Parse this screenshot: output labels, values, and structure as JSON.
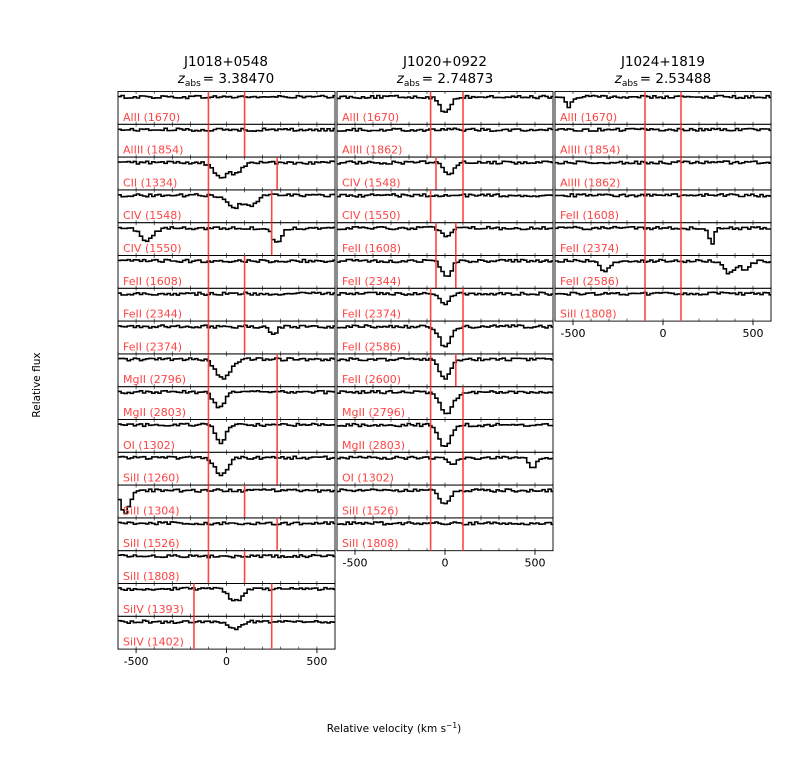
{
  "chart_data": {
    "type": "line",
    "ylabel": "Relative flux",
    "xlabel": "Relative velocity (km s",
    "xlabel_superscript": "−1",
    "xlabel_tail": ")",
    "xlim": [
      -600,
      600
    ],
    "ylim": [
      0,
      1.2
    ],
    "xticks": [
      -500,
      0,
      500
    ],
    "xtick_labels": [
      "-500",
      "0",
      "500"
    ],
    "grid": false,
    "line_color": "#000000",
    "label_color": "#ff4444",
    "marker_color": "#ff4444",
    "panels": [
      {
        "name": "J1018+0548",
        "z_prefix": "z",
        "z_subscript": "abs",
        "z_value": "= 3.38470",
        "vlines": [
          -100,
          100
        ],
        "subplots": [
          {
            "label": "AlII (1670)",
            "vlines": [
              -100,
              100
            ],
            "absorptions": []
          },
          {
            "label": "AlIII (1854)",
            "vlines": [
              -100,
              100
            ],
            "absorptions": []
          },
          {
            "label": "CII (1334)",
            "vlines": [
              -100,
              280
            ],
            "absorptions": [
              {
                "v": -30,
                "depth": 0.6,
                "width": 40
              },
              {
                "v": 60,
                "depth": 0.4,
                "width": 30
              }
            ]
          },
          {
            "label": "CIV (1548)",
            "vlines": [
              -100,
              250
            ],
            "absorptions": [
              {
                "v": 40,
                "depth": 0.5,
                "width": 40
              },
              {
                "v": 140,
                "depth": 0.4,
                "width": 30
              }
            ]
          },
          {
            "label": "CIV (1550)",
            "vlines": [
              -100,
              250
            ],
            "absorptions": [
              {
                "v": -440,
                "depth": 0.5,
                "width": 35
              },
              {
                "v": 280,
                "depth": 0.6,
                "width": 25
              }
            ]
          },
          {
            "label": "FeII (1608)",
            "vlines": [
              -100,
              100
            ],
            "absorptions": []
          },
          {
            "label": "FeII (2344)",
            "vlines": [
              -100,
              100
            ],
            "absorptions": []
          },
          {
            "label": "FeII (2374)",
            "vlines": [
              -100,
              100
            ],
            "absorptions": [
              {
                "v": 260,
                "depth": 0.3,
                "width": 20
              }
            ]
          },
          {
            "label": "MgII (2796)",
            "vlines": [
              -100,
              280
            ],
            "absorptions": [
              {
                "v": -20,
                "depth": 0.8,
                "width": 40
              }
            ]
          },
          {
            "label": "MgII (2803)",
            "vlines": [
              -100,
              280
            ],
            "absorptions": [
              {
                "v": -40,
                "depth": 0.6,
                "width": 30
              }
            ]
          },
          {
            "label": "OI (1302)",
            "vlines": [
              -100,
              280
            ],
            "absorptions": [
              {
                "v": -30,
                "depth": 0.8,
                "width": 25
              }
            ]
          },
          {
            "label": "SiII (1260)",
            "vlines": [
              -100,
              280
            ],
            "absorptions": [
              {
                "v": -30,
                "depth": 0.7,
                "width": 35
              }
            ]
          },
          {
            "label": "SiII (1304)",
            "vlines": [
              -100,
              100
            ],
            "absorptions": [
              {
                "v": -560,
                "depth": 0.9,
                "width": 25
              }
            ]
          },
          {
            "label": "SiII (1526)",
            "vlines": [
              -100,
              280
            ],
            "absorptions": []
          },
          {
            "label": "SiII (1808)",
            "vlines": [
              -100,
              100
            ],
            "absorptions": []
          },
          {
            "label": "SiIV (1393)",
            "vlines": [
              -180,
              250
            ],
            "absorptions": [
              {
                "v": 50,
                "depth": 0.5,
                "width": 35
              }
            ]
          },
          {
            "label": "SiIV (1402)",
            "vlines": [
              -180,
              250
            ],
            "absorptions": [
              {
                "v": 40,
                "depth": 0.3,
                "width": 35
              }
            ]
          }
        ]
      },
      {
        "name": "J1020+0922",
        "z_prefix": "z",
        "z_subscript": "abs",
        "z_value": "= 2.74873",
        "vlines": [
          -80,
          100
        ],
        "subplots": [
          {
            "label": "AlII (1670)",
            "vlines": [
              -80,
              100
            ],
            "absorptions": [
              {
                "v": 0,
                "depth": 0.6,
                "width": 30
              }
            ]
          },
          {
            "label": "AlIII (1862)",
            "vlines": [
              -80,
              100
            ],
            "absorptions": []
          },
          {
            "label": "CIV (1548)",
            "vlines": [
              -50,
              100
            ],
            "absorptions": [
              {
                "v": 20,
                "depth": 0.5,
                "width": 25
              }
            ]
          },
          {
            "label": "CIV (1550)",
            "vlines": [
              -80,
              100
            ],
            "absorptions": []
          },
          {
            "label": "FeII (1608)",
            "vlines": [
              -50,
              60
            ],
            "absorptions": [
              {
                "v": 10,
                "depth": 0.4,
                "width": 25
              }
            ]
          },
          {
            "label": "FeII (2344)",
            "vlines": [
              -50,
              60
            ],
            "absorptions": [
              {
                "v": 10,
                "depth": 0.7,
                "width": 25
              }
            ]
          },
          {
            "label": "FeII (2374)",
            "vlines": [
              -80,
              100
            ],
            "absorptions": [
              {
                "v": 0,
                "depth": 0.4,
                "width": 25
              }
            ]
          },
          {
            "label": "FeII (2586)",
            "vlines": [
              -80,
              100
            ],
            "absorptions": [
              {
                "v": 0,
                "depth": 0.8,
                "width": 30
              }
            ]
          },
          {
            "label": "FeII (2600)",
            "vlines": [
              -80,
              60
            ],
            "absorptions": [
              {
                "v": 0,
                "depth": 0.8,
                "width": 30
              }
            ]
          },
          {
            "label": "MgII (2796)",
            "vlines": [
              -80,
              100
            ],
            "absorptions": [
              {
                "v": 10,
                "depth": 0.9,
                "width": 35
              }
            ]
          },
          {
            "label": "MgII (2803)",
            "vlines": [
              -80,
              100
            ],
            "absorptions": [
              {
                "v": 0,
                "depth": 0.9,
                "width": 30
              }
            ]
          },
          {
            "label": "OI (1302)",
            "vlines": [
              -80,
              100
            ],
            "absorptions": [
              {
                "v": 40,
                "depth": 0.3,
                "width": 25
              },
              {
                "v": 490,
                "depth": 0.4,
                "width": 20
              }
            ]
          },
          {
            "label": "SiII (1526)",
            "vlines": [
              -80,
              100
            ],
            "absorptions": [
              {
                "v": 0,
                "depth": 0.6,
                "width": 25
              }
            ]
          },
          {
            "label": "SiII (1808)",
            "vlines": [
              -80,
              100
            ],
            "absorptions": []
          }
        ]
      },
      {
        "name": "J1024+1819",
        "z_prefix": "z",
        "z_subscript": "abs",
        "z_value": "= 2.53488",
        "vlines": [
          -100,
          100
        ],
        "subplots": [
          {
            "label": "AlII (1670)",
            "vlines": [
              -100,
              100
            ],
            "absorptions": [
              {
                "v": -520,
                "depth": 0.4,
                "width": 15
              }
            ]
          },
          {
            "label": "AlIII (1854)",
            "vlines": [
              -100,
              100
            ],
            "absorptions": []
          },
          {
            "label": "AlIII (1862)",
            "vlines": [
              -100,
              100
            ],
            "absorptions": []
          },
          {
            "label": "FeII (1608)",
            "vlines": [
              -100,
              100
            ],
            "absorptions": []
          },
          {
            "label": "FeII (2374)",
            "vlines": [
              -100,
              100
            ],
            "absorptions": [
              {
                "v": 270,
                "depth": 0.7,
                "width": 12
              }
            ]
          },
          {
            "label": "FeII (2586)",
            "vlines": [
              -100,
              100
            ],
            "absorptions": [
              {
                "v": -320,
                "depth": 0.4,
                "width": 30
              },
              {
                "v": 370,
                "depth": 0.5,
                "width": 30
              },
              {
                "v": 460,
                "depth": 0.4,
                "width": 25
              }
            ]
          },
          {
            "label": "SiII (1808)",
            "vlines": [
              -100,
              100
            ],
            "absorptions": []
          }
        ]
      }
    ]
  }
}
